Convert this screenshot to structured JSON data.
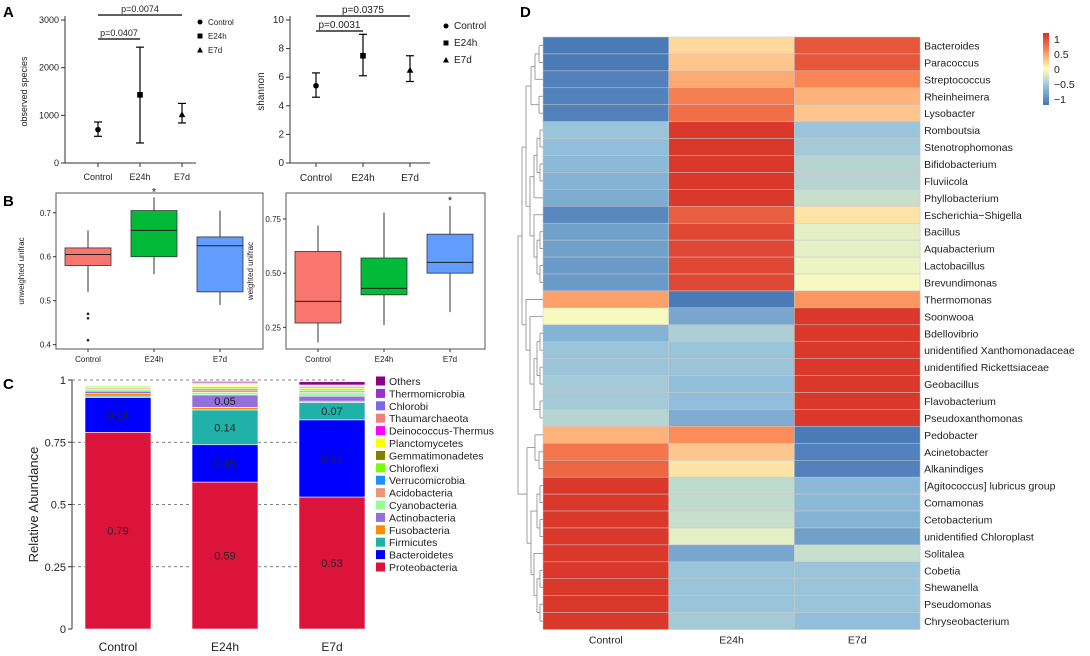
{
  "panels": {
    "a": "A",
    "b": "B",
    "c": "C",
    "d": "D"
  },
  "chart_data": [
    {
      "id": "A1",
      "type": "scatter",
      "subtype": "errorbar",
      "categories": [
        "Control",
        "E24h",
        "E7d"
      ],
      "means": [
        700,
        1430,
        1020
      ],
      "lows": [
        560,
        420,
        840
      ],
      "highs": [
        860,
        2430,
        1250
      ],
      "ylabel": "observed species",
      "ylim": [
        0,
        3000
      ],
      "yticks": [
        0,
        1000,
        2000,
        3000
      ],
      "legend": [
        "Control",
        "E24h",
        "E7d"
      ],
      "brackets": [
        {
          "from": 0,
          "to": 1,
          "label": "p=0.0407"
        },
        {
          "from": 0,
          "to": 2,
          "label": "p=0.0074"
        }
      ]
    },
    {
      "id": "A2",
      "type": "scatter",
      "subtype": "errorbar",
      "categories": [
        "Control",
        "E24h",
        "E7d"
      ],
      "means": [
        5.4,
        7.5,
        6.5
      ],
      "lows": [
        4.6,
        6.1,
        5.7
      ],
      "highs": [
        6.3,
        9.0,
        7.5
      ],
      "ylabel": "shannon",
      "ylim": [
        0,
        10
      ],
      "yticks": [
        0,
        2,
        4,
        6,
        8,
        10
      ],
      "legend": [
        "Control",
        "E24h",
        "E7d"
      ],
      "brackets": [
        {
          "from": 0,
          "to": 1,
          "label": "p=0.0031"
        },
        {
          "from": 0,
          "to": 2,
          "label": "p=0.0375"
        }
      ]
    },
    {
      "id": "B1",
      "type": "box",
      "categories": [
        "Control",
        "E24h",
        "E7d"
      ],
      "colors": [
        "#f8766d",
        "#00ba38",
        "#619cff"
      ],
      "boxes": [
        {
          "min": 0.52,
          "q1": 0.58,
          "median": 0.605,
          "q3": 0.62,
          "max": 0.66,
          "outliers": [
            0.47,
            0.46,
            0.41
          ]
        },
        {
          "min": 0.56,
          "q1": 0.6,
          "median": 0.66,
          "q3": 0.705,
          "max": 0.735,
          "outliers": []
        },
        {
          "min": 0.49,
          "q1": 0.52,
          "median": 0.625,
          "q3": 0.645,
          "max": 0.705,
          "outliers": []
        }
      ],
      "star_index": 1,
      "star": "*",
      "ylabel": "unweighted unifrac",
      "ylim": [
        0.39,
        0.745
      ],
      "yticks": [
        0.4,
        0.5,
        0.6,
        0.7
      ],
      "ytick_labels": [
        "0.4",
        "0.5",
        "0.6",
        "0.7"
      ]
    },
    {
      "id": "B2",
      "type": "box",
      "categories": [
        "Control",
        "E24h",
        "E7d"
      ],
      "colors": [
        "#f8766d",
        "#00ba38",
        "#619cff"
      ],
      "boxes": [
        {
          "min": 0.18,
          "q1": 0.27,
          "median": 0.37,
          "q3": 0.6,
          "max": 0.72,
          "outliers": []
        },
        {
          "min": 0.26,
          "q1": 0.4,
          "median": 0.43,
          "q3": 0.57,
          "max": 0.78,
          "outliers": []
        },
        {
          "min": 0.32,
          "q1": 0.5,
          "median": 0.55,
          "q3": 0.68,
          "max": 0.81,
          "outliers": []
        }
      ],
      "star_index": 2,
      "star": "*",
      "ylabel": "weighted unifrac",
      "ylim": [
        0.15,
        0.87
      ],
      "yticks": [
        0.25,
        0.5,
        0.75
      ],
      "ytick_labels": [
        "0.25",
        "0.50",
        "0.75"
      ]
    },
    {
      "id": "C",
      "type": "bar",
      "subtype": "stacked",
      "categories": [
        "Control",
        "E24h",
        "E7d"
      ],
      "ylabel": "Relative Abundance",
      "ylim": [
        0,
        1
      ],
      "yticks": [
        0,
        0.25,
        0.5,
        0.75,
        1
      ],
      "ytick_labels": [
        "0",
        "0.25",
        "0.5",
        "0.75",
        "1"
      ],
      "legend": [
        "Others",
        "Thermomicrobia",
        "Chlorobi",
        "Thaumarchaeota",
        "Deinococcus-Thermus",
        "Planctomycetes",
        "Gemmatimonadetes",
        "Chloroflexi",
        "Verrucomicrobia",
        "Acidobacteria",
        "Cyanobacteria",
        "Actinobacteria",
        "Fusobacteria",
        "Firmicutes",
        "Bacteroidetes",
        "Proteobacteria"
      ],
      "legend_colors": [
        "#8b008b",
        "#9932cc",
        "#7b68ee",
        "#f08080",
        "#ff00ff",
        "#ffff00",
        "#808000",
        "#7cfc00",
        "#1e90ff",
        "#e9967a",
        "#98fb98",
        "#9370db",
        "#ff8c00",
        "#20b2aa",
        "#0000ff",
        "#dc143c"
      ],
      "series": [
        {
          "name": "Proteobacteria",
          "values": [
            0.79,
            0.59,
            0.53
          ],
          "labels": [
            "0.79",
            "0.59",
            "0.53"
          ]
        },
        {
          "name": "Bacteroidetes",
          "values": [
            0.14,
            0.15,
            0.31
          ],
          "labels": [
            "0.14",
            "0.15",
            "0.31"
          ]
        },
        {
          "name": "Firmicutes",
          "values": [
            0.005,
            0.14,
            0.07
          ],
          "labels": [
            "",
            "0.14",
            "0.07"
          ]
        },
        {
          "name": "Fusobacteria",
          "values": [
            0.01,
            0.01,
            0.005
          ],
          "labels": [
            "",
            "",
            ""
          ]
        },
        {
          "name": "Actinobacteria",
          "values": [
            0.01,
            0.05,
            0.02
          ],
          "labels": [
            "",
            "0.05",
            ""
          ]
        },
        {
          "name": "Cyanobacteria",
          "values": [
            0.008,
            0.01,
            0.01
          ],
          "labels": [
            "",
            "",
            ""
          ]
        },
        {
          "name": "Acidobacteria",
          "values": [
            0.005,
            0.01,
            0.005
          ],
          "labels": [
            "",
            "",
            ""
          ]
        },
        {
          "name": "Verrucomicrobia",
          "values": [
            0.003,
            0.005,
            0.005
          ],
          "labels": [
            "",
            "",
            ""
          ]
        },
        {
          "name": "Chloroflexi",
          "values": [
            0.004,
            0.004,
            0.004
          ],
          "labels": [
            "",
            "",
            ""
          ]
        },
        {
          "name": "Gemmatimonadetes",
          "values": [
            0.003,
            0.004,
            0.004
          ],
          "labels": [
            "",
            "",
            ""
          ]
        },
        {
          "name": "Planctomycetes",
          "values": [
            0.002,
            0.004,
            0.004
          ],
          "labels": [
            "",
            "",
            ""
          ]
        },
        {
          "name": "Deinococcus-Thermus",
          "values": [
            0.002,
            0.003,
            0.004
          ],
          "labels": [
            "",
            "",
            ""
          ]
        },
        {
          "name": "Thaumarchaeota",
          "values": [
            0.002,
            0.003,
            0.003
          ],
          "labels": [
            "",
            "",
            ""
          ]
        },
        {
          "name": "Chlorobi",
          "values": [
            0.002,
            0.003,
            0.003
          ],
          "labels": [
            "",
            "",
            ""
          ]
        },
        {
          "name": "Thermomicrobia",
          "values": [
            0.002,
            0.003,
            0.003
          ],
          "labels": [
            "",
            "",
            ""
          ]
        },
        {
          "name": "Others",
          "values": [
            0.002,
            0.005,
            0.013
          ],
          "labels": [
            "",
            "",
            ""
          ]
        }
      ]
    },
    {
      "id": "D",
      "type": "heatmap",
      "columns": [
        "Control",
        "E24h",
        "E7d"
      ],
      "rows": [
        "Bacteroides",
        "Paracoccus",
        "Streptococcus",
        "Rheinheimera",
        "Lysobacter",
        "Romboutsia",
        "Stenotrophomonas",
        "Bifidobacterium",
        "Fluviicola",
        "Phyllobacterium",
        "Escherichia−Shigella",
        "Bacillus",
        "Aquabacterium",
        "Lactobacillus",
        "Brevundimonas",
        "Thermomonas",
        "Soonwooa",
        "Bdellovibrio",
        "unidentified Xanthomonadaceae",
        "unidentified Rickettsiaceae",
        "Geobacillus",
        "Flavobacterium",
        "Pseudoxanthomonas",
        "Pedobacter",
        "Acinetobacter",
        "Alkanindiges",
        "[Agitococcus] lubricus group",
        "Comamonas",
        "Cetobacterium",
        "unidentified Chloroplast",
        "Solitalea",
        "Cobetia",
        "Shewanella",
        "Pseudomonas",
        "Chryseobacterium"
      ],
      "values": [
        [
          -1.15,
          0.2,
          0.95
        ],
        [
          -1.15,
          0.3,
          0.95
        ],
        [
          -1.1,
          0.45,
          0.65
        ],
        [
          -1.1,
          0.7,
          0.4
        ],
        [
          -1.1,
          0.8,
          0.3
        ],
        [
          -0.55,
          1.15,
          -0.55
        ],
        [
          -0.6,
          1.15,
          -0.5
        ],
        [
          -0.65,
          1.15,
          -0.4
        ],
        [
          -0.7,
          1.15,
          -0.4
        ],
        [
          -0.75,
          1.15,
          -0.3
        ],
        [
          -1.05,
          0.9,
          0.15
        ],
        [
          -0.85,
          1.05,
          -0.15
        ],
        [
          -0.85,
          1.05,
          -0.15
        ],
        [
          -0.9,
          1.05,
          -0.1
        ],
        [
          -0.9,
          1.05,
          -0.05
        ],
        [
          0.5,
          -1.15,
          0.55
        ],
        [
          -0.05,
          -0.8,
          1.15
        ],
        [
          -0.7,
          -0.45,
          1.15
        ],
        [
          -0.55,
          -0.55,
          1.15
        ],
        [
          -0.55,
          -0.55,
          1.15
        ],
        [
          -0.5,
          -0.6,
          1.15
        ],
        [
          -0.5,
          -0.6,
          1.15
        ],
        [
          -0.4,
          -0.75,
          1.15
        ],
        [
          0.4,
          0.6,
          -1.15
        ],
        [
          0.75,
          0.3,
          -1.1
        ],
        [
          0.85,
          0.15,
          -1.1
        ],
        [
          1.15,
          -0.35,
          -0.65
        ],
        [
          1.15,
          -0.35,
          -0.65
        ],
        [
          1.15,
          -0.3,
          -0.7
        ],
        [
          1.15,
          -0.15,
          -0.85
        ],
        [
          1.15,
          -0.8,
          -0.3
        ],
        [
          1.15,
          -0.55,
          -0.55
        ],
        [
          1.15,
          -0.55,
          -0.55
        ],
        [
          1.15,
          -0.55,
          -0.55
        ],
        [
          1.15,
          -0.5,
          -0.6
        ]
      ],
      "color_scale": {
        "ticks": [
          1,
          0.5,
          0,
          -0.5,
          -1
        ],
        "tick_labels": [
          "1",
          "0.5",
          "0",
          "−0.5",
          "−1"
        ],
        "vmin": -1.2,
        "vmax": 1.2,
        "stops": [
          "#4575b4",
          "#91bfdb",
          "#ffffbf",
          "#fc8d59",
          "#d73027"
        ]
      }
    }
  ]
}
